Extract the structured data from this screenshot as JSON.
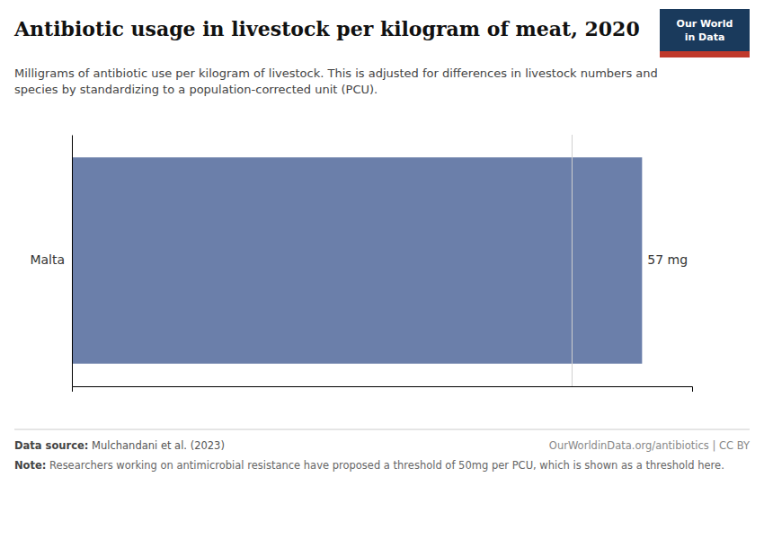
{
  "chart_data": {
    "type": "bar",
    "orientation": "horizontal",
    "title": "Antibiotic usage in livestock per kilogram of meat, 2020",
    "subtitle": "Milligrams of antibiotic use per kilogram of livestock. This is adjusted for differences in livestock numbers and\nspecies by standardizing to a population-corrected unit (PCU).",
    "categories": [
      "Malta"
    ],
    "values": [
      57
    ],
    "value_labels": [
      "57 mg"
    ],
    "data_labels": true,
    "color": "#6b7faa",
    "xlim": [
      0,
      62
    ],
    "xticks": [],
    "tick_labels": "y",
    "threshold": {
      "value": 50,
      "color": "#d0d0d0"
    },
    "source": {
      "label": "Data source:",
      "text": " Mulchandani et al. (2023)"
    },
    "note": {
      "label": "Note:",
      "text": " Researchers working on antimicrobial resistance have proposed a threshold of 50mg per PCU, which is shown as a threshold here."
    },
    "website": "OurWorldinData.org/antibiotics | CC BY",
    "logo": {
      "lines": [
        "Our World",
        "in Data"
      ],
      "colors": [
        "#1a3a5c",
        "#c0392b"
      ]
    }
  }
}
